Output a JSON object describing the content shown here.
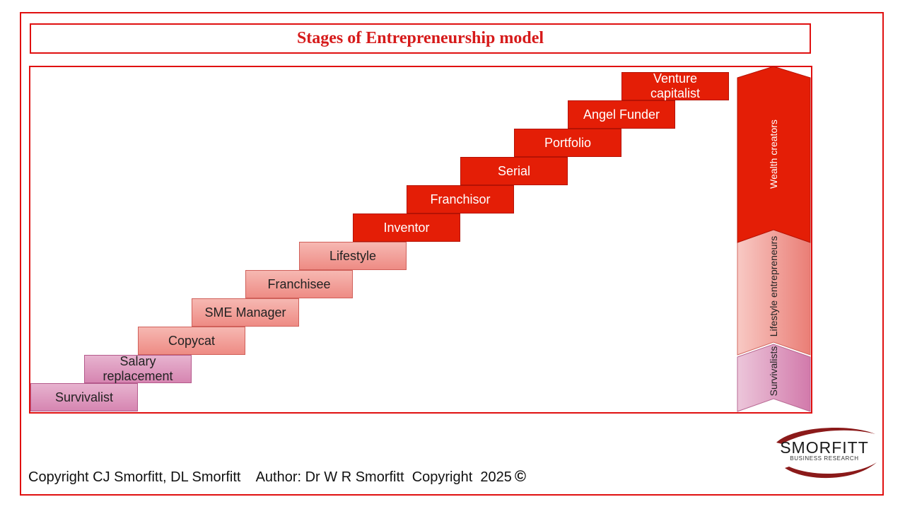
{
  "title": "Stages of Entrepreneurship model",
  "stages": [
    {
      "label": "Survivalist",
      "group": "survival"
    },
    {
      "label": "Salary replacement",
      "group": "survival"
    },
    {
      "label": "Copycat",
      "group": "lifestyle"
    },
    {
      "label": "SME Manager",
      "group": "lifestyle"
    },
    {
      "label": "Franchisee",
      "group": "lifestyle"
    },
    {
      "label": "Lifestyle",
      "group": "lifestyle"
    },
    {
      "label": "Inventor",
      "group": "wealth"
    },
    {
      "label": "Franchisor",
      "group": "wealth"
    },
    {
      "label": "Serial",
      "group": "wealth"
    },
    {
      "label": "Portfolio",
      "group": "wealth"
    },
    {
      "label": "Angel Funder",
      "group": "wealth"
    },
    {
      "label": "Venture capitalist",
      "group": "wealth"
    }
  ],
  "groups": {
    "wealth": {
      "label": "Wealth creators",
      "color": "#e41e06"
    },
    "lifestyle": {
      "label": "Lifestyle entrepreneurs",
      "color": "#f09b94"
    },
    "survival": {
      "label": "Survivalists",
      "color": "#dc94bb"
    }
  },
  "footer": {
    "copyright_text": "Copyright CJ Smorfitt, DL Smorfitt    Author: Dr W R Smorfitt  Copyright  2025",
    "symbol": "©"
  },
  "logo": {
    "name": "SMORFITT",
    "subtitle": "BUSINESS RESEARCH"
  }
}
